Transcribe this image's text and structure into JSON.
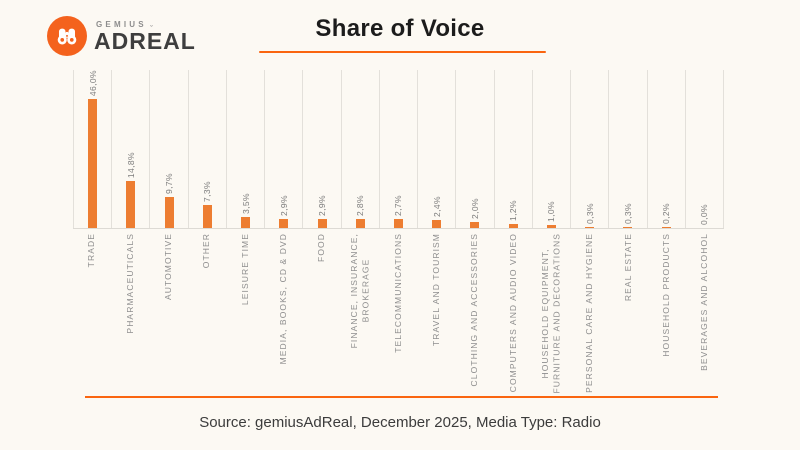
{
  "logo": {
    "brand_top": "GEMIUS",
    "brand_bottom": "ADREAL",
    "caron": "ˇ"
  },
  "header": {
    "title": "Share of Voice"
  },
  "chart_data": {
    "type": "bar",
    "title": "Share of Voice",
    "categories": [
      "TRADE",
      "PHARMACEUTICALS",
      "AUTOMOTIVE",
      "OTHER",
      "LEISURE TIME",
      "MEDIA, BOOKS, CD & DVD",
      "FOOD",
      "FINANCE, INSURANCE,\nBROKERAGE",
      "TELECOMMUNICATIONS",
      "TRAVEL AND TOURISM",
      "CLOTHING AND ACCESSORIES",
      "COMPUTERS AND AUDIO VIDEO",
      "HOUSEHOLD EQUIPMENT,\nFURNITURE AND DECORATIONS",
      "PERSONAL CARE AND HYGIENE",
      "REAL ESTATE",
      "HOUSEHOLD PRODUCTS",
      "BEVERAGES AND ALCOHOL"
    ],
    "values": [
      46.0,
      14.8,
      9.7,
      7.3,
      3.5,
      2.9,
      2.9,
      2.8,
      2.7,
      2.4,
      2.0,
      1.2,
      1.0,
      0.3,
      0.3,
      0.2,
      0.0
    ],
    "value_labels": [
      "46,0%",
      "14,8%",
      "9,7%",
      "7,3%",
      "3,5%",
      "2,9%",
      "2,9%",
      "2,8%",
      "2,7%",
      "2,4%",
      "2,0%",
      "1,2%",
      "1,0%",
      "0,3%",
      "0,3%",
      "0,2%",
      "0,0%"
    ],
    "unit": "%",
    "decimal_separator": ",",
    "ylim": [
      0,
      50
    ],
    "bar_color": "#ED7D31",
    "gridlines": "vertical light-gray separators at category boundaries",
    "legend": "none",
    "value_label_rotation": 90,
    "category_label_rotation": 90
  },
  "footer": {
    "source": "Source: gemiusAdReal, December 2025, Media Type: Radio"
  },
  "colors": {
    "background": "#FCF9F3",
    "accent_orange": "#FA650F",
    "bar_orange": "#ED7D31",
    "logo_orange": "#F4621D",
    "text_dark": "#1C1C1C",
    "muted_gray": "#8E8E8E"
  }
}
